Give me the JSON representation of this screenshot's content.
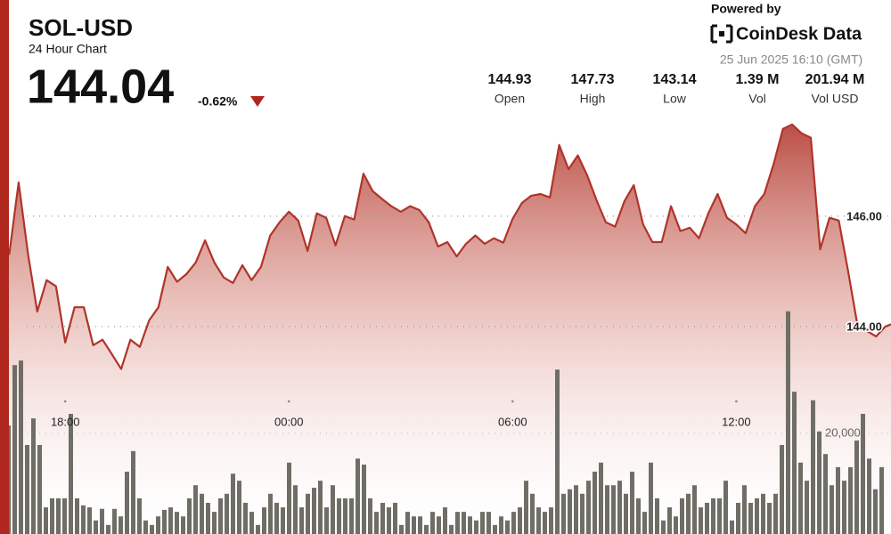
{
  "header": {
    "symbol": "SOL-USD",
    "subtitle": "24 Hour Chart",
    "price": "144.04",
    "change": "-0.62%",
    "powered_by": "Powered by",
    "brand": "CoinDesk Data",
    "timestamp": "25 Jun 2025 16:10 (GMT)",
    "stats": [
      {
        "value": "144.93",
        "label": "Open"
      },
      {
        "value": "147.73",
        "label": "High"
      },
      {
        "value": "143.14",
        "label": "Low"
      },
      {
        "value": "1.39 M",
        "label": "Vol"
      },
      {
        "value": "201.94 M",
        "label": "Vol USD"
      }
    ]
  },
  "chart_data": [
    {
      "type": "line",
      "color": "#b0342a",
      "x": [
        16.25,
        16.5,
        16.75,
        17,
        17.25,
        17.5,
        17.75,
        18,
        18.25,
        18.5,
        18.75,
        19,
        19.25,
        19.5,
        19.75,
        20,
        20.25,
        20.5,
        20.75,
        21,
        21.25,
        21.5,
        21.75,
        22,
        22.25,
        22.5,
        22.75,
        23,
        23.25,
        23.5,
        23.75,
        24,
        24.25,
        24.5,
        24.75,
        25,
        25.25,
        25.5,
        25.75,
        26,
        26.25,
        26.5,
        26.75,
        27,
        27.25,
        27.5,
        27.75,
        28,
        28.25,
        28.5,
        28.75,
        29,
        29.25,
        29.5,
        29.75,
        30,
        30.25,
        30.5,
        30.75,
        31,
        31.25,
        31.5,
        31.75,
        32,
        32.25,
        32.5,
        32.75,
        33,
        33.25,
        33.5,
        33.75,
        34,
        34.25,
        34.5,
        34.75,
        35,
        35.25,
        35.5,
        35.75,
        36,
        36.25,
        36.5,
        36.75,
        37,
        37.25,
        37.5,
        37.75,
        38,
        38.25,
        38.5,
        38.75,
        39,
        39.25,
        39.5,
        39.75,
        40,
        40.15
      ],
      "values": [
        145.16,
        145.32,
        146.61,
        145.32,
        144.27,
        144.84,
        144.73,
        143.71,
        144.35,
        144.35,
        143.66,
        143.76,
        143.5,
        143.23,
        143.76,
        143.63,
        144.11,
        144.35,
        145.08,
        144.81,
        144.95,
        145.16,
        145.56,
        145.16,
        144.89,
        144.79,
        145.11,
        144.84,
        145.08,
        145.65,
        145.89,
        146.08,
        145.92,
        145.37,
        146.05,
        145.97,
        145.47,
        146,
        145.94,
        146.77,
        146.45,
        146.31,
        146.18,
        146.08,
        146.18,
        146.11,
        145.89,
        145.45,
        145.53,
        145.27,
        145.5,
        145.65,
        145.5,
        145.6,
        145.52,
        145.95,
        146.24,
        146.37,
        146.4,
        146.34,
        147.29,
        146.85,
        147.1,
        146.74,
        146.29,
        145.89,
        145.81,
        146.27,
        146.56,
        145.85,
        145.53,
        145.53,
        146.18,
        145.73,
        145.79,
        145.6,
        146.05,
        146.4,
        145.97,
        145.85,
        145.69,
        146.18,
        146.4,
        146.94,
        147.58,
        147.66,
        147.5,
        147.42,
        145.4,
        145.97,
        145.92,
        145,
        144.03,
        143.92,
        143.82,
        144,
        144.04
      ],
      "xlim": [
        16.25,
        40.15
      ],
      "ylim": [
        140.24,
        147.82
      ],
      "xticks": [
        {
          "value": 18,
          "label": "18:00"
        },
        {
          "value": 24,
          "label": "00:00"
        },
        {
          "value": 30,
          "label": "06:00"
        },
        {
          "value": 36,
          "label": "12:00"
        }
      ],
      "yticks": [
        {
          "value": 144,
          "label": "144.00"
        },
        {
          "value": 146,
          "label": "146.00"
        }
      ],
      "grid": true
    },
    {
      "type": "bar",
      "color": "#6e6e66",
      "values": [
        21600,
        33600,
        34500,
        17700,
        23000,
        17700,
        5300,
        7100,
        7100,
        7100,
        23900,
        7100,
        5700,
        5300,
        2700,
        5000,
        1800,
        5000,
        3500,
        12400,
        16500,
        7100,
        2700,
        1800,
        3500,
        4800,
        5300,
        4400,
        3500,
        7100,
        9700,
        8000,
        6200,
        4400,
        7100,
        8000,
        12000,
        10600,
        6200,
        4400,
        1800,
        5300,
        8000,
        6200,
        5300,
        14200,
        9700,
        5300,
        8000,
        9200,
        10600,
        5300,
        9700,
        7100,
        7100,
        7100,
        15000,
        13800,
        7100,
        4400,
        6200,
        5300,
        6200,
        1800,
        4400,
        3500,
        3500,
        1800,
        4400,
        3500,
        5300,
        1800,
        4400,
        4400,
        3500,
        2700,
        4400,
        4400,
        1800,
        3500,
        2700,
        4400,
        5300,
        10600,
        8000,
        5300,
        4400,
        5300,
        32700,
        8000,
        8900,
        9700,
        8000,
        10600,
        12400,
        14200,
        9700,
        9700,
        10600,
        8000,
        12400,
        7100,
        4400,
        14200,
        7100,
        2700,
        5300,
        3500,
        7100,
        8000,
        9700,
        5300,
        6200,
        7100,
        7100,
        10600,
        2700,
        6200,
        9700,
        6200,
        7100,
        8000,
        6200,
        8000,
        17700,
        44300,
        28300,
        14200,
        10600,
        26600,
        20400,
        15900,
        9700,
        13300,
        10600,
        13300,
        18600,
        23900,
        15000,
        8900,
        13300
      ],
      "ylim": [
        0,
        83200
      ],
      "yticks": [
        {
          "value": 20000,
          "label": "20,000"
        }
      ]
    }
  ]
}
